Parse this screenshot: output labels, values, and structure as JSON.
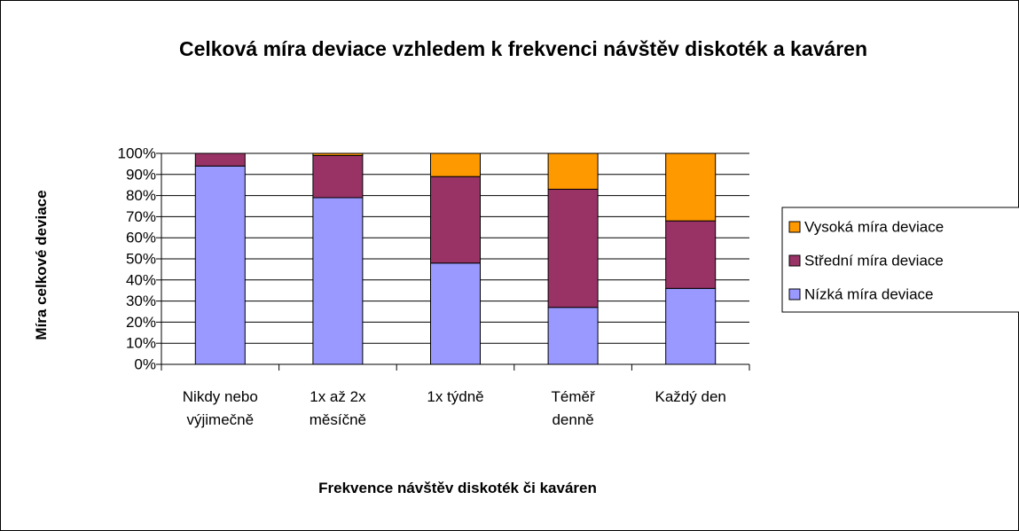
{
  "chart_data": {
    "type": "stacked_bar",
    "title": "Celková míra deviace vzhledem k frekvenci návštěv diskoték a kaváren",
    "x_label": "Frekvence návštěv diskoték či kaváren",
    "y_label": "Míra celkové deviace",
    "categories": [
      "Nikdy nebo výjimečně",
      "1x až 2x měsíčně",
      "1x týdně",
      "Téměř denně",
      "Každý den"
    ],
    "series": [
      {
        "name": "Nízká míra deviace",
        "color": "#9999ff",
        "values": [
          94,
          79,
          48,
          27,
          36
        ]
      },
      {
        "name": "Střední míra deviace",
        "color": "#993366",
        "values": [
          6,
          20,
          41,
          56,
          32
        ]
      },
      {
        "name": "Vysoká míra deviace",
        "color": "#ff9900",
        "values": [
          0,
          1,
          11,
          17,
          32
        ]
      }
    ],
    "ylim": [
      0,
      100
    ],
    "yticks": [
      {
        "value": 0,
        "label": "0%"
      },
      {
        "value": 10,
        "label": "10%"
      },
      {
        "value": 20,
        "label": "20%"
      },
      {
        "value": 30,
        "label": "30%"
      },
      {
        "value": 40,
        "label": "40%"
      },
      {
        "value": 50,
        "label": "50%"
      },
      {
        "value": 60,
        "label": "60%"
      },
      {
        "value": 70,
        "label": "70%"
      },
      {
        "value": 80,
        "label": "80%"
      },
      {
        "value": 90,
        "label": "90%"
      },
      {
        "value": 100,
        "label": "100%"
      }
    ],
    "grid": true,
    "legend": "right"
  }
}
